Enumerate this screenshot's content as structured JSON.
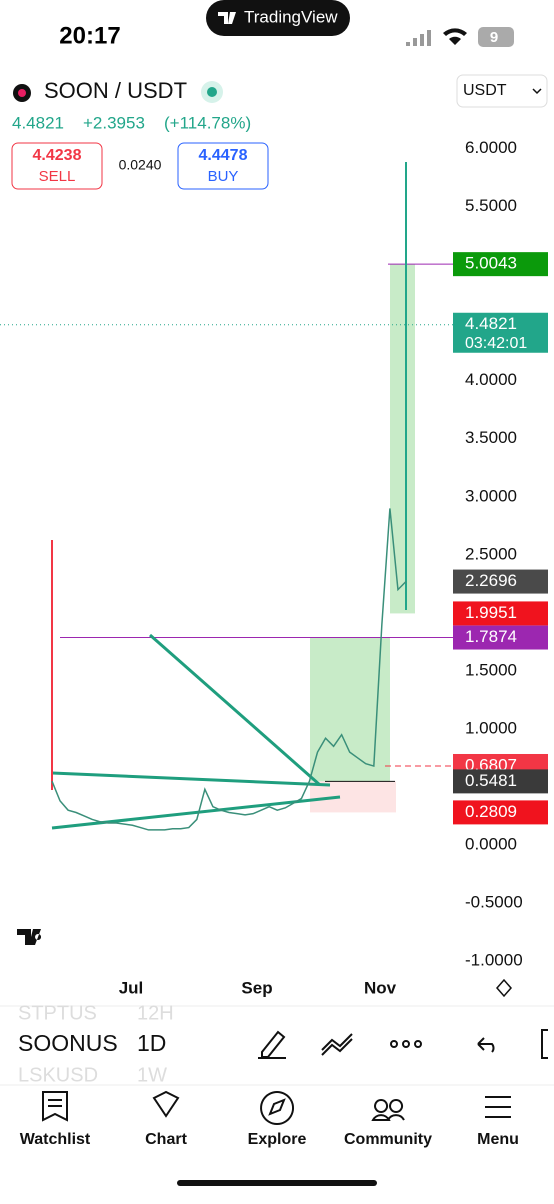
{
  "status_bar": {
    "time": "20:17",
    "app": "TradingView",
    "battery": "9"
  },
  "header": {
    "symbol": "SOON / USDT",
    "currency": "USDT",
    "last": "4.4821",
    "change": "+2.3953",
    "change_pct": "(+114.78%)",
    "sell": {
      "price": "4.4238",
      "label": "SELL"
    },
    "spread": "0.0240",
    "buy": {
      "price": "4.4478",
      "label": "BUY"
    }
  },
  "chart_data": {
    "type": "line",
    "series": [
      {
        "color": "#3a8f7a",
        "values": [
          0.55,
          0.38,
          0.3,
          0.28,
          0.25,
          0.22,
          0.2,
          0.19,
          0.19,
          0.18,
          0.17,
          0.15,
          0.13,
          0.13,
          0.13,
          0.14,
          0.14,
          0.15,
          0.22,
          0.48,
          0.33,
          0.3,
          0.28,
          0.27,
          0.26,
          0.27,
          0.3,
          0.33,
          0.3,
          0.32,
          0.36,
          0.4,
          0.55,
          0.8,
          0.92,
          0.85,
          0.95,
          0.8,
          0.75,
          0.7,
          0.68,
          1.9,
          2.9,
          2.2,
          2.27
        ]
      }
    ],
    "ylim": [
      -1.12,
      6.16
    ],
    "yticks": [
      {
        "value": 6,
        "label": "6.0000"
      },
      {
        "value": 5.5,
        "label": "5.5000"
      },
      {
        "value": 4,
        "label": "4.0000"
      },
      {
        "value": 3.5,
        "label": "3.5000"
      },
      {
        "value": 3,
        "label": "3.0000"
      },
      {
        "value": 2.5,
        "label": "2.5000"
      },
      {
        "value": 1.5,
        "label": "1.5000"
      },
      {
        "value": 1,
        "label": "1.0000"
      },
      {
        "value": 0,
        "label": "0.0000"
      },
      {
        "value": -0.5,
        "label": "-0.5000"
      },
      {
        "value": -1,
        "label": "-1.0000"
      }
    ],
    "xticks": [
      "Jul",
      "Sep",
      "Nov"
    ],
    "price_labels": [
      {
        "value": 5.0043,
        "label": "5.0043",
        "color": "#0b9a0b"
      },
      {
        "value": 4.4821,
        "label": "4.4821",
        "countdown": "03:42:01",
        "color": "#22a68a"
      },
      {
        "value": 2.2696,
        "label": "2.2696",
        "color": "#4a4a4a"
      },
      {
        "value": 1.9951,
        "label": "1.9951",
        "color": "#f0131e"
      },
      {
        "value": 1.7874,
        "label": "1.7874",
        "color": "#9c27b0"
      },
      {
        "value": 0.6807,
        "label": "0.6807",
        "color": "#f23645"
      },
      {
        "value": 0.5481,
        "label": "0.5481",
        "color": "#3a3a3a"
      },
      {
        "value": 0.2809,
        "label": "0.2809",
        "color": "#f0131e"
      }
    ]
  },
  "toolbar": {
    "symbols": [
      {
        "symbol": "STPTUS",
        "interval": "12H"
      },
      {
        "symbol": "SOONUS",
        "interval": "1D"
      },
      {
        "symbol": "LSKUSD",
        "interval": "1W"
      }
    ]
  },
  "nav": [
    "Watchlist",
    "Chart",
    "Explore",
    "Community",
    "Menu"
  ]
}
